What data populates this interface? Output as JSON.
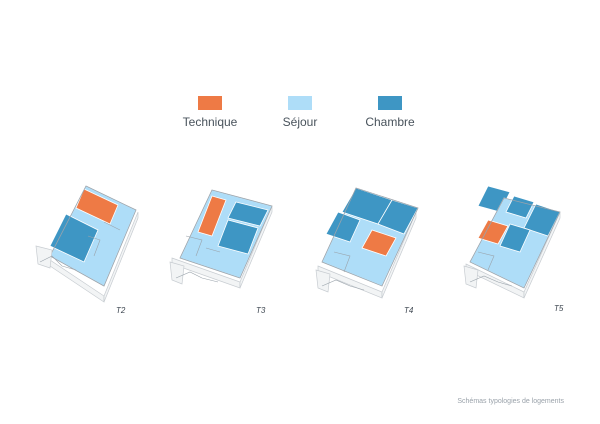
{
  "legend": {
    "items": [
      {
        "label": "Technique",
        "color": "#EE7A45"
      },
      {
        "label": "Séjour",
        "color": "#AEDDF8"
      },
      {
        "label": "Chambre",
        "color": "#3E96C4"
      }
    ]
  },
  "plans": [
    {
      "label": "T2"
    },
    {
      "label": "T3"
    },
    {
      "label": "T4"
    },
    {
      "label": "T5"
    }
  ],
  "caption": "Schémas typologies de logements",
  "colors": {
    "technique": "#EE7A45",
    "sejour": "#AEDDF8",
    "chambre": "#3E96C4",
    "walls": "#c7ccd1",
    "outline": "#9aa3ab"
  }
}
